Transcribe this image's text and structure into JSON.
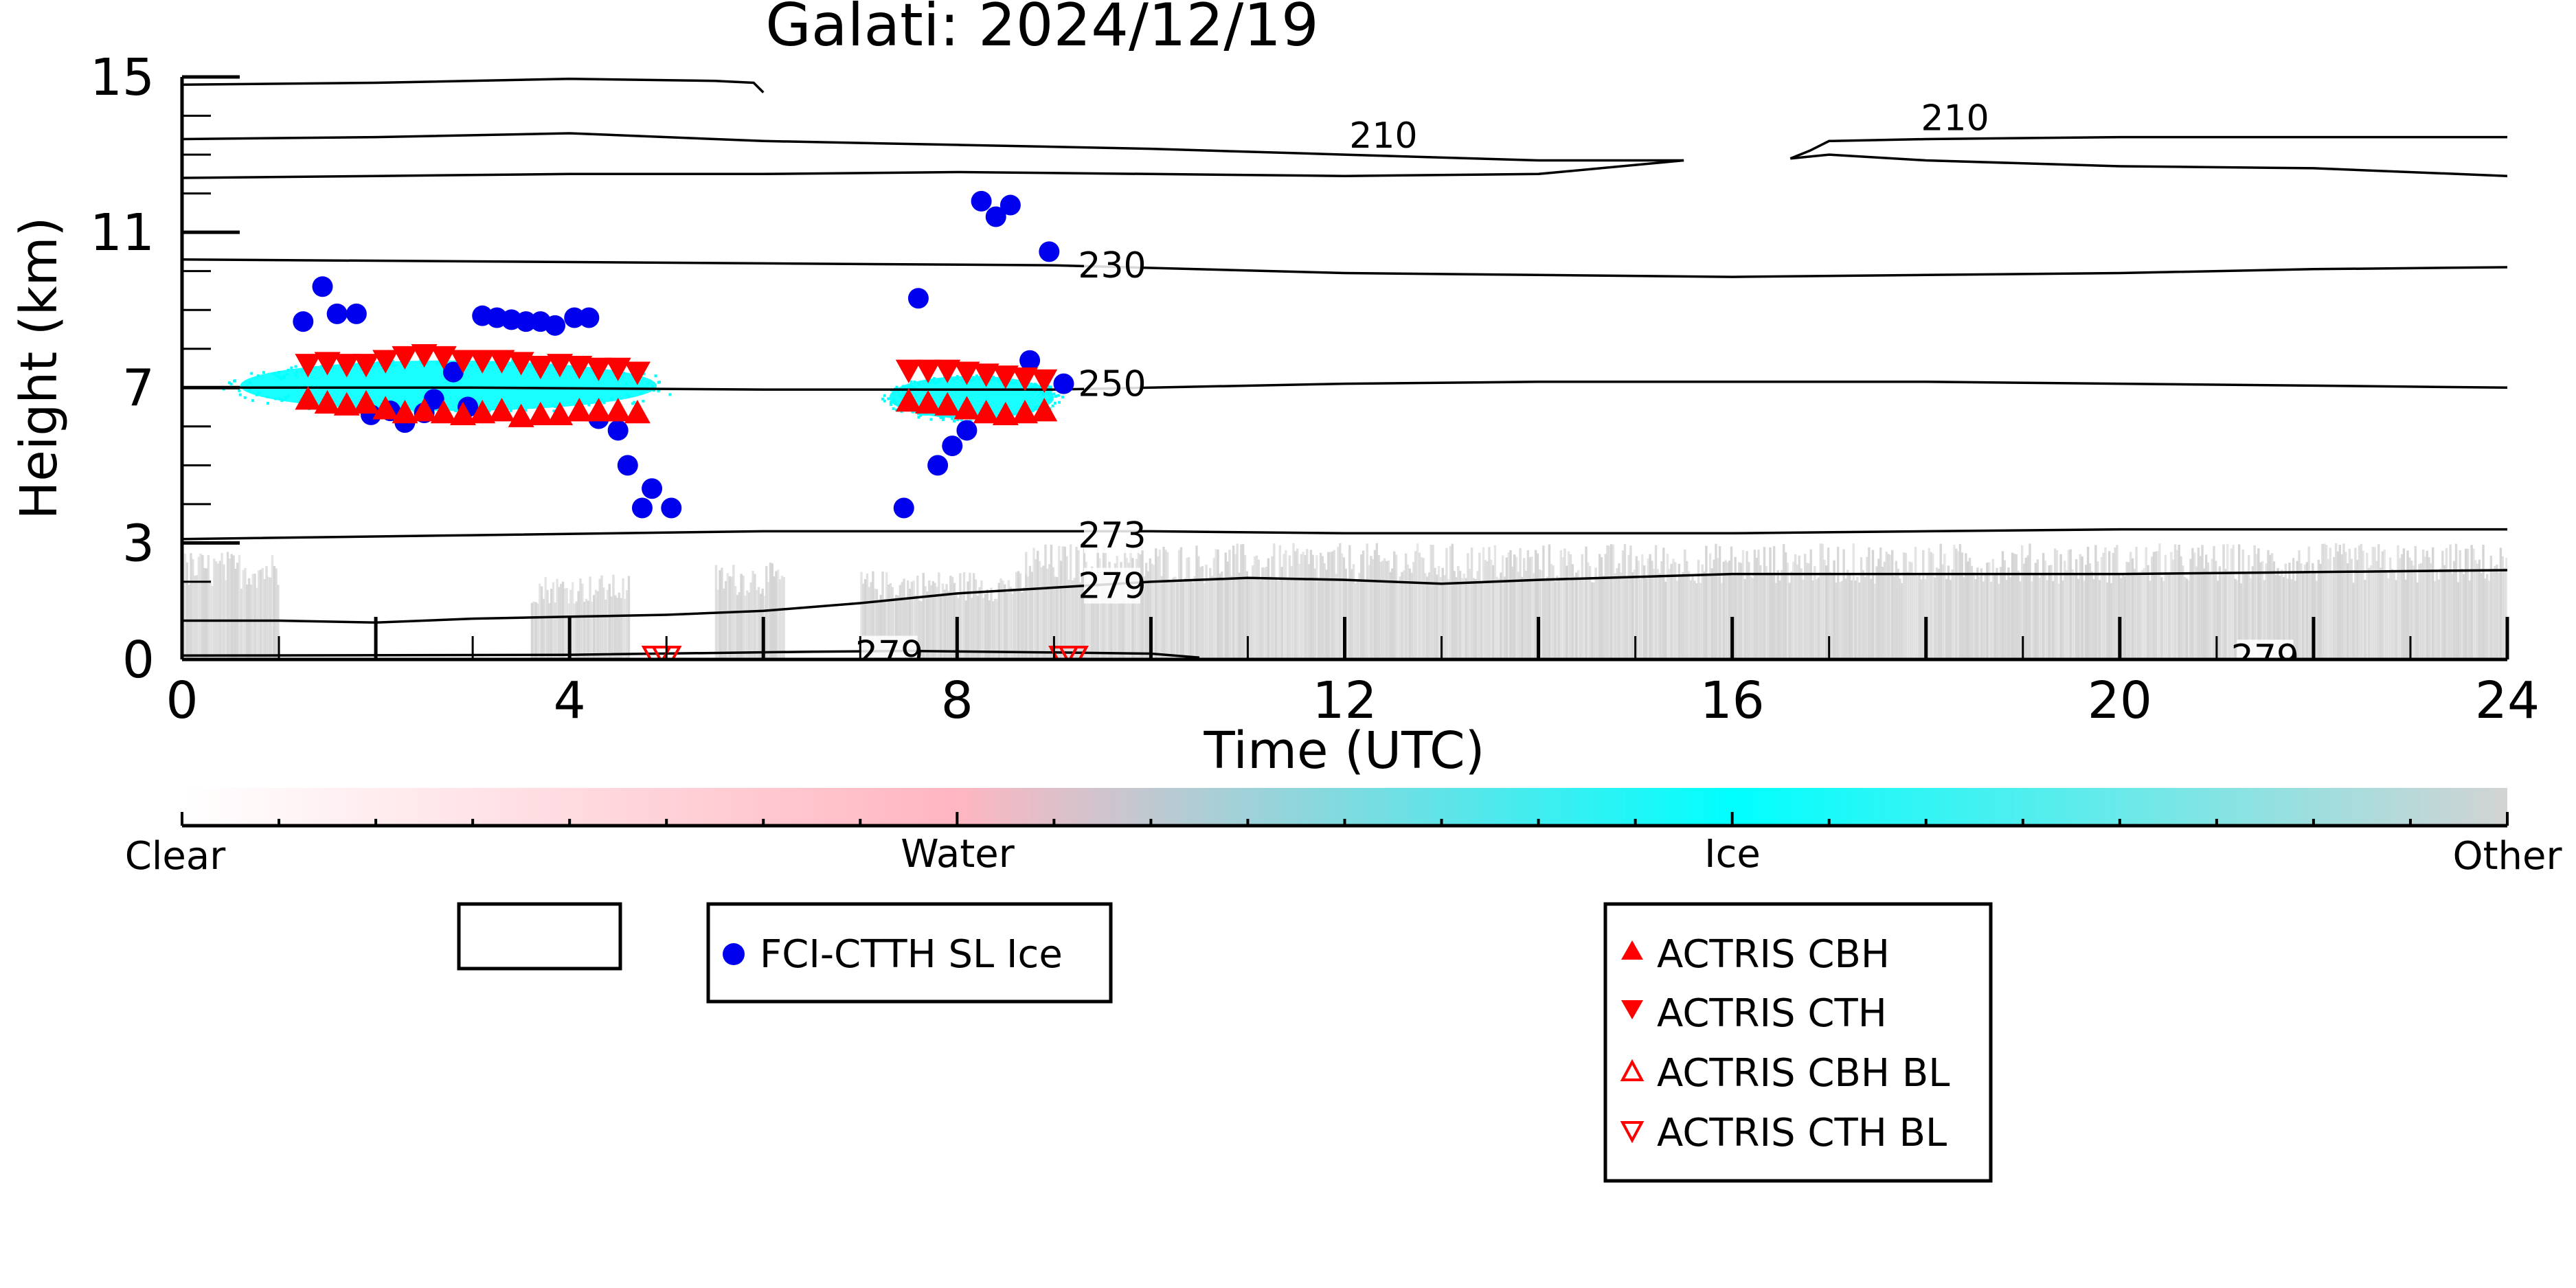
{
  "chart_data": {
    "type": "scatter",
    "title": "Galati: 2024/12/19",
    "xlabel": "Time (UTC)",
    "ylabel": "Height (km)",
    "xlim": [
      0,
      24
    ],
    "ylim": [
      0,
      15
    ],
    "x_ticks": [
      0,
      4,
      8,
      12,
      16,
      20,
      24
    ],
    "x_tick_labels": [
      "0",
      "4",
      "8",
      "12",
      "16",
      "20",
      "24"
    ],
    "y_ticks": [
      0,
      3,
      7,
      11,
      15
    ],
    "y_tick_labels": [
      "0",
      "3",
      "7",
      "11",
      "15"
    ],
    "grid": false,
    "colorbar": {
      "labels": [
        "Clear",
        "Water",
        "Ice",
        "Other"
      ],
      "colors": [
        "#ffffff",
        "#ffb6c1",
        "#00ffff",
        "#d3d3d3"
      ]
    },
    "legend_boxes": [
      {
        "entries": []
      },
      {
        "entries": [
          {
            "label": "FCI-CTTH SL Ice",
            "color": "#0000ee",
            "marker": "circle"
          }
        ]
      },
      {
        "entries": [
          {
            "label": "ACTRIS CBH",
            "color": "#ff0000",
            "marker": "triangle-up"
          },
          {
            "label": "ACTRIS CTH",
            "color": "#ff0000",
            "marker": "triangle-down"
          },
          {
            "label": "ACTRIS CBH BL",
            "color": "#ff0000",
            "marker": "triangle-up-open"
          },
          {
            "label": "ACTRIS CTH BL",
            "color": "#ff0000",
            "marker": "triangle-down-open"
          }
        ]
      }
    ],
    "contour_labels": [
      {
        "text": "210",
        "x": 12.4,
        "y": 13.5
      },
      {
        "text": "210",
        "x": 18.3,
        "y": 13.95
      },
      {
        "text": "230",
        "x": 9.6,
        "y": 10.15
      },
      {
        "text": "250",
        "x": 9.6,
        "y": 7.1
      },
      {
        "text": "273",
        "x": 9.6,
        "y": 3.2
      },
      {
        "text": "279",
        "x": 9.6,
        "y": 1.9
      },
      {
        "text": "279",
        "x": 7.3,
        "y": 0.15
      },
      {
        "text": "279",
        "x": 21.5,
        "y": 0.05
      }
    ],
    "isotherms": [
      {
        "label": "210",
        "points": [
          [
            0,
            14.8
          ],
          [
            2,
            14.85
          ],
          [
            4,
            14.95
          ],
          [
            5.5,
            14.9
          ],
          [
            5.9,
            14.85
          ],
          [
            6.0,
            14.6
          ]
        ]
      },
      {
        "label": "210",
        "points": [
          [
            0,
            13.4
          ],
          [
            2,
            13.45
          ],
          [
            4,
            13.55
          ],
          [
            6,
            13.35
          ],
          [
            8,
            13.25
          ],
          [
            10,
            13.15
          ],
          [
            12,
            13.0
          ],
          [
            14,
            12.85
          ],
          [
            15.5,
            12.85
          ]
        ]
      },
      {
        "label": "210",
        "points": [
          [
            0,
            12.4
          ],
          [
            2,
            12.45
          ],
          [
            4,
            12.5
          ],
          [
            6,
            12.5
          ],
          [
            8,
            12.55
          ],
          [
            10,
            12.5
          ],
          [
            12,
            12.45
          ],
          [
            14,
            12.5
          ],
          [
            15.5,
            12.85
          ]
        ]
      },
      {
        "label": "210",
        "points": [
          [
            16.6,
            12.9
          ],
          [
            16.8,
            13.1
          ],
          [
            17,
            13.35
          ],
          [
            18,
            13.4
          ],
          [
            20,
            13.45
          ],
          [
            24,
            13.45
          ]
        ]
      },
      {
        "label": "210",
        "points": [
          [
            16.6,
            12.9
          ],
          [
            17,
            13.0
          ],
          [
            18,
            12.85
          ],
          [
            20,
            12.7
          ],
          [
            22,
            12.65
          ],
          [
            24,
            12.45
          ]
        ]
      },
      {
        "label": "230",
        "points": [
          [
            0,
            10.3
          ],
          [
            3,
            10.25
          ],
          [
            6,
            10.2
          ],
          [
            9,
            10.15
          ],
          [
            12,
            9.95
          ],
          [
            14,
            9.9
          ],
          [
            16,
            9.85
          ],
          [
            18,
            9.9
          ],
          [
            20,
            9.95
          ],
          [
            22,
            10.05
          ],
          [
            24,
            10.1
          ]
        ]
      },
      {
        "label": "250",
        "points": [
          [
            0,
            7.0
          ],
          [
            3,
            7.0
          ],
          [
            6,
            6.95
          ],
          [
            9,
            6.95
          ],
          [
            12,
            7.1
          ],
          [
            14,
            7.15
          ],
          [
            16,
            7.15
          ],
          [
            18,
            7.15
          ],
          [
            20,
            7.1
          ],
          [
            22,
            7.05
          ],
          [
            24,
            7.0
          ]
        ]
      },
      {
        "label": "273",
        "points": [
          [
            0,
            3.1
          ],
          [
            3,
            3.2
          ],
          [
            6,
            3.3
          ],
          [
            8,
            3.3
          ],
          [
            10,
            3.3
          ],
          [
            12,
            3.25
          ],
          [
            14,
            3.25
          ],
          [
            16,
            3.25
          ],
          [
            18,
            3.3
          ],
          [
            20,
            3.35
          ],
          [
            22,
            3.35
          ],
          [
            24,
            3.35
          ]
        ]
      },
      {
        "label": "279",
        "points": [
          [
            0,
            1.0
          ],
          [
            1,
            1.0
          ],
          [
            2,
            0.95
          ],
          [
            3,
            1.05
          ],
          [
            4,
            1.1
          ],
          [
            5,
            1.15
          ],
          [
            6,
            1.25
          ],
          [
            7,
            1.45
          ],
          [
            8,
            1.7
          ],
          [
            9,
            1.85
          ],
          [
            10,
            2.0
          ],
          [
            11,
            2.1
          ],
          [
            12,
            2.05
          ],
          [
            13,
            1.95
          ],
          [
            14,
            2.05
          ],
          [
            16,
            2.2
          ],
          [
            18,
            2.2
          ],
          [
            20,
            2.2
          ],
          [
            22,
            2.25
          ],
          [
            24,
            2.3
          ]
        ]
      },
      {
        "label": "279",
        "points": [
          [
            0,
            0.1
          ],
          [
            4,
            0.12
          ],
          [
            6.5,
            0.2
          ],
          [
            7.5,
            0.22
          ],
          [
            9,
            0.18
          ],
          [
            10,
            0.15
          ],
          [
            10.5,
            0.05
          ]
        ]
      }
    ],
    "cloud_regions": [
      {
        "phase": "Ice",
        "x_start": 0.6,
        "x_end": 4.9,
        "y_bottom": 6.4,
        "y_top": 7.7,
        "color": "#00ffff"
      },
      {
        "phase": "Ice",
        "x_start": 7.3,
        "x_end": 9.0,
        "y_bottom": 6.2,
        "y_top": 7.3,
        "color": "#00ffff"
      },
      {
        "phase": "Other",
        "x_start": 0,
        "x_end": 1.0,
        "y_bottom": 0,
        "y_top": 2.8,
        "color": "#d3d3d3"
      },
      {
        "phase": "Other",
        "x_start": 3.6,
        "x_end": 4.6,
        "y_bottom": 0,
        "y_top": 2.2,
        "color": "#d3d3d3"
      },
      {
        "phase": "Other",
        "x_start": 5.5,
        "x_end": 6.2,
        "y_bottom": 0,
        "y_top": 2.5,
        "color": "#d3d3d3"
      },
      {
        "phase": "Other",
        "x_start": 7.0,
        "x_end": 8.7,
        "y_bottom": 0,
        "y_top": 2.3,
        "color": "#d3d3d3"
      },
      {
        "phase": "Other",
        "x_start": 8.7,
        "x_end": 24,
        "y_bottom": 0,
        "y_top": 3.0,
        "color": "#d3d3d3"
      }
    ],
    "series": [
      {
        "name": "FCI-CTTH SL Ice",
        "color": "#0000ee",
        "marker": "circle",
        "x": [
          1.25,
          1.45,
          1.6,
          1.8,
          1.95,
          2.15,
          2.3,
          2.5,
          2.6,
          2.8,
          2.95,
          3.1,
          3.25,
          3.4,
          3.55,
          3.7,
          3.85,
          4.05,
          4.2,
          4.3,
          4.5,
          4.6,
          4.75,
          4.85,
          5.05,
          7.45,
          7.6,
          7.8,
          7.95,
          8.1,
          8.25,
          8.4,
          8.55,
          8.75,
          8.95,
          9.1
        ],
        "y": [
          8.7,
          9.6,
          8.9,
          8.9,
          6.3,
          6.4,
          6.1,
          6.35,
          6.7,
          7.4,
          6.5,
          8.85,
          8.8,
          8.75,
          8.7,
          8.7,
          8.6,
          8.8,
          8.8,
          6.2,
          5.9,
          5.0,
          3.9,
          4.4,
          3.9,
          3.9,
          9.3,
          5.0,
          5.5,
          5.9,
          11.8,
          11.4,
          11.7,
          7.7,
          10.5,
          7.1
        ]
      },
      {
        "name": "ACTRIS CBH",
        "color": "#ff0000",
        "marker": "triangle-up",
        "x": [
          1.3,
          1.5,
          1.7,
          1.9,
          2.1,
          2.3,
          2.5,
          2.7,
          2.9,
          3.1,
          3.3,
          3.5,
          3.7,
          3.9,
          4.1,
          4.3,
          4.5,
          4.7,
          7.5,
          7.7,
          7.9,
          8.1,
          8.3,
          8.5,
          8.7,
          8.9
        ],
        "y": [
          6.7,
          6.6,
          6.55,
          6.6,
          6.45,
          6.35,
          6.4,
          6.35,
          6.3,
          6.35,
          6.4,
          6.25,
          6.3,
          6.3,
          6.4,
          6.4,
          6.4,
          6.35,
          6.65,
          6.6,
          6.55,
          6.45,
          6.35,
          6.3,
          6.35,
          6.4
        ]
      },
      {
        "name": "ACTRIS CTH",
        "color": "#ff0000",
        "marker": "triangle-down",
        "x": [
          1.3,
          1.5,
          1.7,
          1.9,
          2.1,
          2.3,
          2.5,
          2.7,
          2.9,
          3.1,
          3.3,
          3.5,
          3.7,
          3.9,
          4.1,
          4.3,
          4.5,
          4.7,
          7.5,
          7.7,
          7.9,
          8.1,
          8.3,
          8.5,
          8.7,
          8.9
        ],
        "y": [
          7.6,
          7.65,
          7.6,
          7.6,
          7.7,
          7.8,
          7.85,
          7.8,
          7.7,
          7.7,
          7.7,
          7.65,
          7.55,
          7.6,
          7.55,
          7.5,
          7.5,
          7.4,
          7.45,
          7.45,
          7.45,
          7.4,
          7.35,
          7.3,
          7.25,
          7.2
        ]
      },
      {
        "name": "ACTRIS CBH BL",
        "color": "#ff0000",
        "marker": "triangle-up-open",
        "x": [],
        "y": []
      },
      {
        "name": "ACTRIS CTH BL",
        "color": "#ff0000",
        "marker": "triangle-down-open",
        "x": [
          4.9,
          5.0,
          9.1,
          9.2
        ],
        "y": [
          0.05,
          0.05,
          0.05,
          0.05
        ]
      }
    ]
  }
}
